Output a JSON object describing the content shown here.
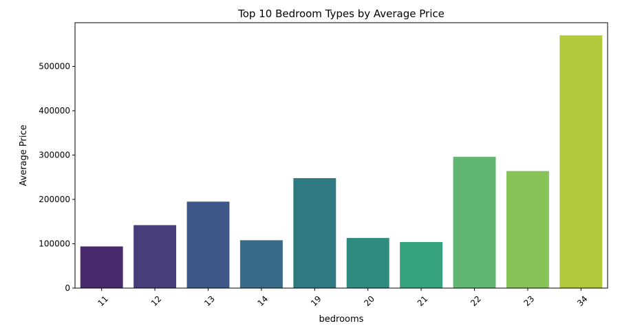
{
  "chart_data": {
    "type": "bar",
    "title": "Top 10 Bedroom Types by Average Price",
    "xlabel": "bedrooms",
    "ylabel": "Average Price",
    "categories": [
      "11",
      "12",
      "13",
      "14",
      "19",
      "20",
      "21",
      "22",
      "23",
      "34"
    ],
    "values": [
      94000,
      142000,
      195000,
      108000,
      248000,
      113000,
      104000,
      296000,
      264000,
      570000
    ],
    "colors": [
      "#482a6c",
      "#463e7b",
      "#405889",
      "#376b88",
      "#2f7a80",
      "#2d8c7e",
      "#37a37c",
      "#61b671",
      "#86c45a",
      "#b1c93a"
    ],
    "yticks": [
      0,
      100000,
      200000,
      300000,
      400000,
      500000
    ],
    "ytick_labels": [
      "0",
      "100000",
      "200000",
      "300000",
      "400000",
      "500000"
    ],
    "ylim": [
      0,
      598500
    ],
    "grid": false,
    "legend": "none"
  }
}
